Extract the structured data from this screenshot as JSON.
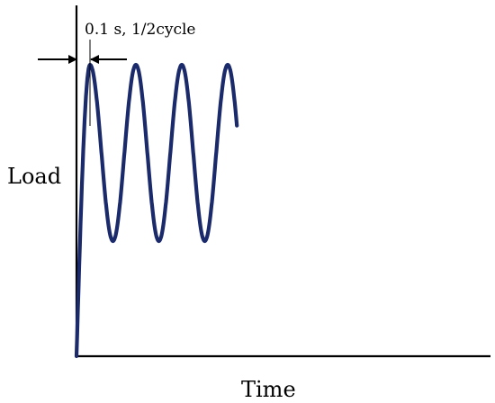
{
  "chart_data": {
    "type": "line",
    "title": "",
    "xlabel": "Time",
    "ylabel": "Load",
    "grid": false,
    "legend": "none",
    "series": [
      {
        "color": "#1a2a6b",
        "shape": "ramp then sinusoid",
        "ramp_duration_s": 0.025,
        "half_cycle_s": 0.1,
        "cycles_shown": 3.5
      }
    ],
    "annotation": {
      "text": "0.1 s, 1/2cycle",
      "arrow_color": "#000000"
    }
  }
}
